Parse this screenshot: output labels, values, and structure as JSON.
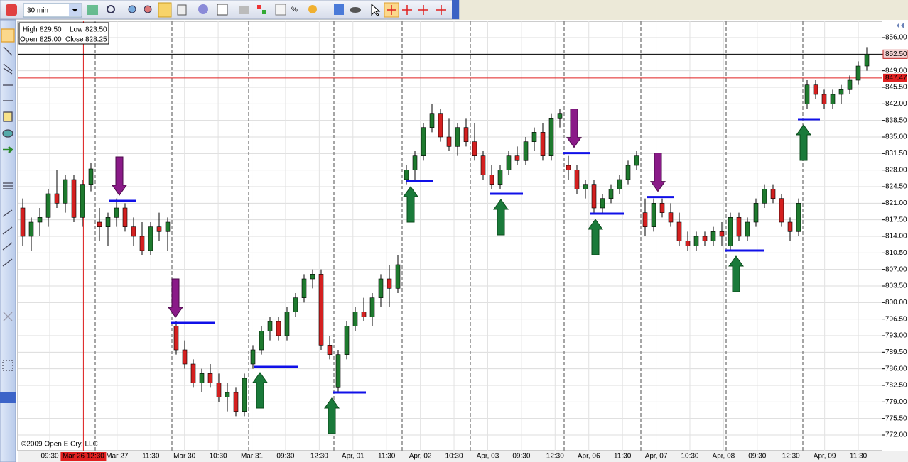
{
  "toolbar": {
    "interval": "30 min"
  },
  "info_box": {
    "high": {
      "label": "High",
      "value": "829.50"
    },
    "low": {
      "label": "Low",
      "value": "823.50"
    },
    "open": {
      "label": "Open",
      "value": "825.00"
    },
    "close": {
      "label": "Close",
      "value": "828.25"
    }
  },
  "copyright": "©2009 Open E Cry, LLC",
  "chart_data": {
    "type": "candlestick",
    "up_color": "#1e7a2e",
    "down_color": "#d42020",
    "grid": true,
    "ylim": [
      768.7,
      859.45
    ],
    "yticks": [
      {
        "value": 856,
        "label": "856.00"
      },
      {
        "value": 852.5,
        "label": "852.50"
      },
      {
        "value": 849,
        "label": "849.00"
      },
      {
        "value": 845.5,
        "label": "845.50"
      },
      {
        "value": 842,
        "label": "842.00"
      },
      {
        "value": 838.5,
        "label": "838.50"
      },
      {
        "value": 835,
        "label": "835.00"
      },
      {
        "value": 831.5,
        "label": "831.50"
      },
      {
        "value": 828,
        "label": "828.00"
      },
      {
        "value": 824.5,
        "label": "824.50"
      },
      {
        "value": 821,
        "label": "821.00"
      },
      {
        "value": 817.5,
        "label": "817.50"
      },
      {
        "value": 814,
        "label": "814.00"
      },
      {
        "value": 810.5,
        "label": "810.50"
      },
      {
        "value": 807,
        "label": "807.00"
      },
      {
        "value": 803.5,
        "label": "803.50"
      },
      {
        "value": 800,
        "label": "800.00"
      },
      {
        "value": 796.5,
        "label": "796.50"
      },
      {
        "value": 793,
        "label": "793.00"
      },
      {
        "value": 789.5,
        "label": "789.50"
      },
      {
        "value": 786,
        "label": "786.00"
      },
      {
        "value": 782.5,
        "label": "782.50"
      },
      {
        "value": 779,
        "label": "779.00"
      },
      {
        "value": 775.5,
        "label": "775.50"
      },
      {
        "value": 772,
        "label": "772.00"
      }
    ],
    "x_labels": [
      "09:30",
      "Mar 26 12:30",
      "Mar 27",
      "11:30",
      "Mar 30",
      "10:30",
      "Mar 31",
      "09:30",
      "12:30",
      "Apr, 01",
      "11:30",
      "Apr, 02",
      "10:30",
      "Apr, 03",
      "09:30",
      "12:30",
      "Apr, 06",
      "11:30",
      "Apr, 07",
      "10:30",
      "Apr, 08",
      "09:30",
      "12:30",
      "Apr, 09",
      "11:30"
    ],
    "highlight_x_label": 1,
    "session_starts": [
      9,
      18,
      27,
      37,
      45,
      53,
      64,
      73,
      83,
      92
    ],
    "last_price": {
      "value": 852.5,
      "label": "852.50"
    },
    "crosshair_price": {
      "value": 847.47,
      "label": "847.47"
    },
    "signals": [
      {
        "type": "sell",
        "level": 821.5
      },
      {
        "type": "sell",
        "level": 795.7
      },
      {
        "type": "buy",
        "level": 786.4
      },
      {
        "type": "buy",
        "level": 781
      },
      {
        "type": "buy",
        "level": 825.7
      },
      {
        "type": "buy",
        "level": 823
      },
      {
        "type": "sell",
        "level": 831.6
      },
      {
        "type": "buy",
        "level": 818.8
      },
      {
        "type": "sell",
        "level": 822.3
      },
      {
        "type": "buy",
        "level": 811
      },
      {
        "type": "buy",
        "level": 838.75
      }
    ],
    "candles": [
      [
        820,
        822,
        812,
        814
      ],
      [
        814,
        818,
        811,
        817
      ],
      [
        817,
        820,
        814,
        818
      ],
      [
        818,
        824,
        816,
        823
      ],
      [
        823,
        828,
        820,
        821
      ],
      [
        821,
        827,
        819,
        826
      ],
      [
        826,
        827,
        817,
        818
      ],
      [
        818,
        826,
        816,
        825
      ],
      [
        825,
        829.5,
        823.5,
        828.25
      ],
      [
        817,
        820,
        813,
        816
      ],
      [
        816,
        819,
        812,
        818
      ],
      [
        818,
        822,
        816,
        820
      ],
      [
        820,
        821,
        815,
        816
      ],
      [
        816,
        818,
        812,
        814
      ],
      [
        814,
        817,
        810,
        811
      ],
      [
        811,
        817,
        810,
        816
      ],
      [
        816,
        819,
        813,
        815
      ],
      [
        815,
        818,
        811,
        817
      ],
      [
        795,
        796,
        789,
        790
      ],
      [
        790,
        792,
        786,
        787
      ],
      [
        787,
        788,
        782,
        783
      ],
      [
        783,
        786,
        781,
        785
      ],
      [
        785,
        787,
        782,
        783
      ],
      [
        783,
        785,
        779,
        780
      ],
      [
        780,
        783,
        777,
        781
      ],
      [
        781,
        782,
        776,
        777
      ],
      [
        777,
        785,
        776,
        784
      ],
      [
        787,
        791,
        786,
        790
      ],
      [
        790,
        795,
        789,
        794
      ],
      [
        794,
        797,
        792,
        796
      ],
      [
        796,
        797,
        792,
        793
      ],
      [
        793,
        799,
        792,
        798
      ],
      [
        798,
        802,
        797,
        801
      ],
      [
        801,
        806,
        800,
        805
      ],
      [
        805,
        807,
        803,
        806
      ],
      [
        806,
        807,
        790,
        791
      ],
      [
        791,
        793,
        788,
        789
      ],
      [
        782,
        790,
        781,
        789
      ],
      [
        789,
        796,
        788,
        795
      ],
      [
        795,
        799,
        794,
        798
      ],
      [
        798,
        801,
        796,
        797
      ],
      [
        797,
        802,
        795,
        801
      ],
      [
        801,
        806,
        799,
        805
      ],
      [
        805,
        808,
        799,
        803
      ],
      [
        803,
        810,
        802,
        808
      ],
      [
        826,
        829,
        825,
        828
      ],
      [
        828,
        832,
        826,
        831
      ],
      [
        831,
        838,
        830,
        837
      ],
      [
        837,
        842,
        836,
        840
      ],
      [
        840,
        841,
        834,
        835
      ],
      [
        835,
        839,
        832,
        833
      ],
      [
        833,
        838,
        831,
        837
      ],
      [
        837,
        839,
        833,
        834
      ],
      [
        834,
        838,
        830,
        831
      ],
      [
        831,
        832,
        826,
        827
      ],
      [
        827,
        829,
        824,
        825
      ],
      [
        825,
        829,
        824,
        828
      ],
      [
        828,
        832,
        827,
        831
      ],
      [
        831,
        833,
        829,
        830
      ],
      [
        830,
        835,
        829,
        834
      ],
      [
        834,
        837,
        832,
        836
      ],
      [
        836,
        838,
        830,
        831
      ],
      [
        831,
        840,
        830,
        839
      ],
      [
        839,
        841,
        837,
        840
      ],
      [
        829,
        831,
        826,
        828
      ],
      [
        828,
        829,
        823,
        824
      ],
      [
        824,
        826,
        822,
        825
      ],
      [
        825,
        826,
        819,
        820
      ],
      [
        820,
        823,
        819,
        822
      ],
      [
        822,
        825,
        821,
        824
      ],
      [
        824,
        827,
        823,
        826
      ],
      [
        826,
        830,
        825,
        829
      ],
      [
        829,
        832,
        828,
        831
      ],
      [
        819,
        822,
        814,
        816
      ],
      [
        816,
        822,
        815,
        821
      ],
      [
        821,
        822,
        818,
        819
      ],
      [
        819,
        821,
        816,
        817
      ],
      [
        817,
        819,
        812,
        813
      ],
      [
        813,
        815,
        811,
        812
      ],
      [
        812,
        815,
        811,
        814
      ],
      [
        814,
        815,
        812,
        813
      ],
      [
        813,
        816,
        812,
        815
      ],
      [
        815,
        817,
        812,
        814
      ],
      [
        812,
        819,
        811,
        818
      ],
      [
        818,
        819,
        813,
        814
      ],
      [
        814,
        818,
        813,
        817
      ],
      [
        817,
        822,
        816,
        821
      ],
      [
        821,
        825,
        820,
        824
      ],
      [
        824,
        825,
        821,
        822
      ],
      [
        822,
        823,
        816,
        817
      ],
      [
        817,
        818,
        813,
        815
      ],
      [
        815,
        822,
        814,
        821
      ],
      [
        842,
        847,
        841,
        846
      ],
      [
        846,
        847,
        843,
        844
      ],
      [
        844,
        845,
        841,
        842
      ],
      [
        842,
        845,
        841,
        844
      ],
      [
        844,
        846,
        842,
        845
      ],
      [
        845,
        848,
        844,
        847
      ],
      [
        847,
        851,
        846,
        850
      ],
      [
        850,
        854,
        849,
        852.5
      ]
    ]
  }
}
